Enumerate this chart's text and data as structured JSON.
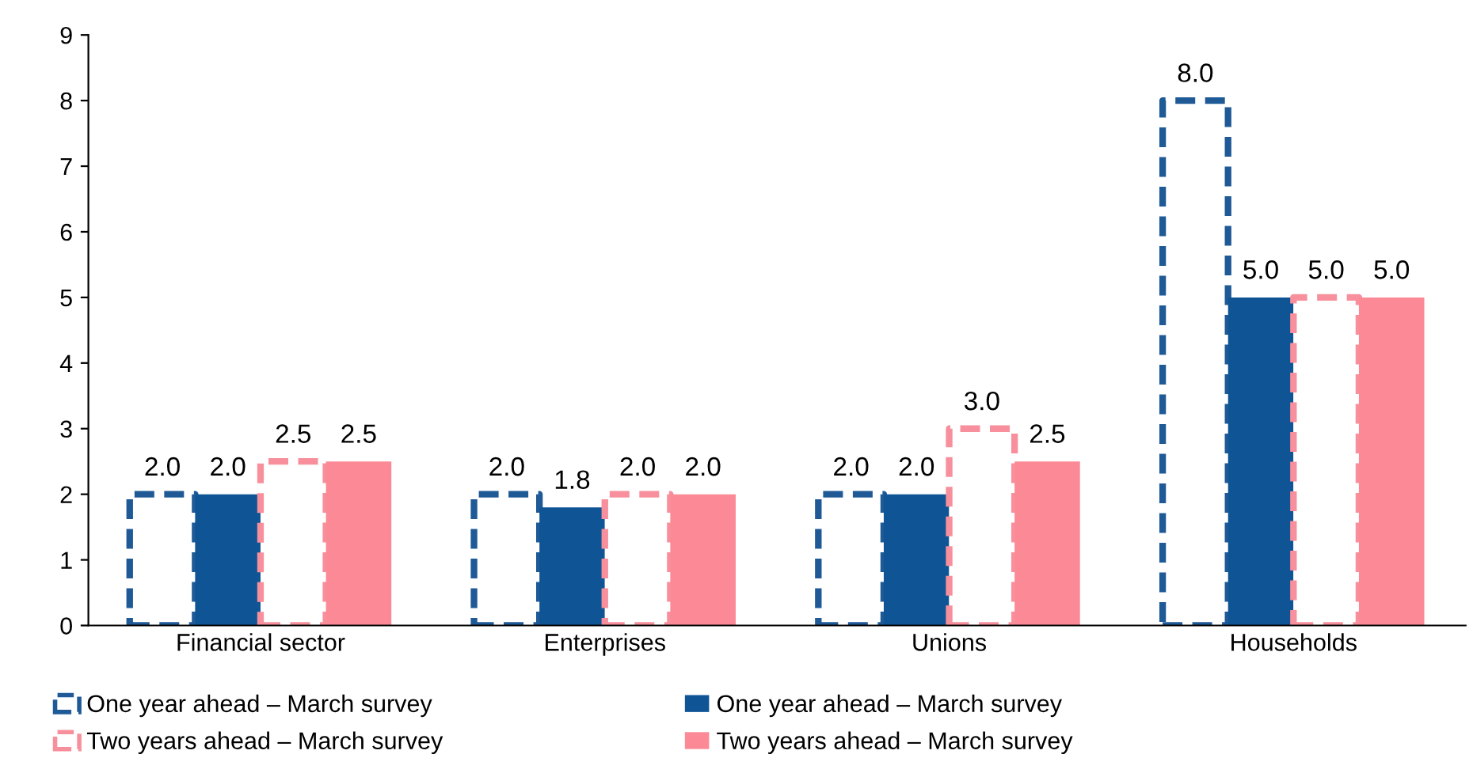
{
  "chart_data": {
    "type": "bar",
    "categories": [
      "Financial sector",
      "Enterprises",
      "Unions",
      "Households"
    ],
    "series": [
      {
        "name": "One year ahead – March survey",
        "color": "#1f5a96",
        "line_style": "dashed",
        "values": [
          2,
          2,
          2,
          8
        ],
        "value_labels": [
          "2.0",
          "2.0",
          "2.0",
          "8.0"
        ]
      },
      {
        "name": "One year ahead – March survey",
        "color": "#0f5596",
        "values": [
          2,
          1.8,
          2,
          5
        ],
        "value_labels": [
          "2.0",
          "1.8",
          "2.0",
          "5.0"
        ]
      },
      {
        "name": "Two years ahead – March survey",
        "color": "#f7909c",
        "line_style": "dashed",
        "values": [
          2.5,
          2,
          3,
          5
        ],
        "value_labels": [
          "2.5",
          "2.0",
          "3.0",
          "5.0"
        ]
      },
      {
        "name": "Two years ahead – March survey",
        "color": "#fb8a96",
        "values": [
          2.5,
          2,
          2.5,
          5
        ],
        "value_labels": [
          "2.5",
          "2.0",
          "2.5",
          "5.0"
        ]
      }
    ],
    "ylim": [
      0,
      9
    ],
    "yticks": [
      0,
      1,
      2,
      3,
      4,
      5,
      6,
      7,
      8,
      9
    ],
    "grid": false,
    "legend": "bottom"
  }
}
